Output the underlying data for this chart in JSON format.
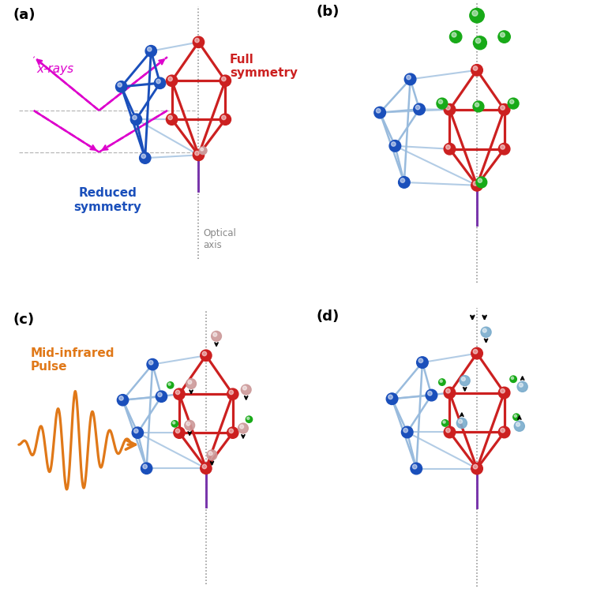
{
  "colors": {
    "blue": "#1a4fbb",
    "red": "#cc2020",
    "green": "#18aa18",
    "pink": "#cc9999",
    "magenta": "#dd00cc",
    "orange": "#e07818",
    "lightblue_edge": "#99bbdd",
    "purple": "#7733aa",
    "gray": "#888888",
    "lightblue_ghost": "#88aacc"
  },
  "background": "#ffffff"
}
